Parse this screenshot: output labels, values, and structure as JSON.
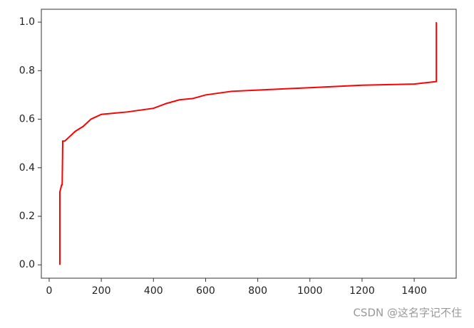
{
  "chart_data": {
    "type": "line",
    "x": [
      41,
      41,
      48,
      50,
      52,
      60,
      80,
      100,
      130,
      160,
      200,
      300,
      400,
      450,
      500,
      550,
      600,
      700,
      800,
      900,
      1000,
      1200,
      1400,
      1485,
      1485
    ],
    "values": [
      0,
      0.3,
      0.33,
      0.33,
      0.51,
      0.51,
      0.53,
      0.55,
      0.57,
      0.6,
      0.62,
      0.63,
      0.645,
      0.665,
      0.68,
      0.685,
      0.7,
      0.715,
      0.72,
      0.725,
      0.73,
      0.74,
      0.745,
      0.755,
      1.0
    ],
    "color": "#ff0000",
    "xlim": [
      -30,
      1561
    ],
    "ylim": [
      -0.055,
      1.053
    ],
    "xticks": [
      0,
      200,
      400,
      600,
      800,
      1000,
      1200,
      1400
    ],
    "yticks": [
      {
        "value": 0,
        "label": "0.0"
      },
      {
        "value": 0.2,
        "label": "0.2"
      },
      {
        "value": 0.4,
        "label": "0.4"
      },
      {
        "value": 0.6,
        "label": "0.6"
      },
      {
        "value": 0.8,
        "label": "0.8"
      },
      {
        "value": 1,
        "label": "1.0"
      }
    ],
    "watermark": "CSDN @这名字记不住"
  }
}
